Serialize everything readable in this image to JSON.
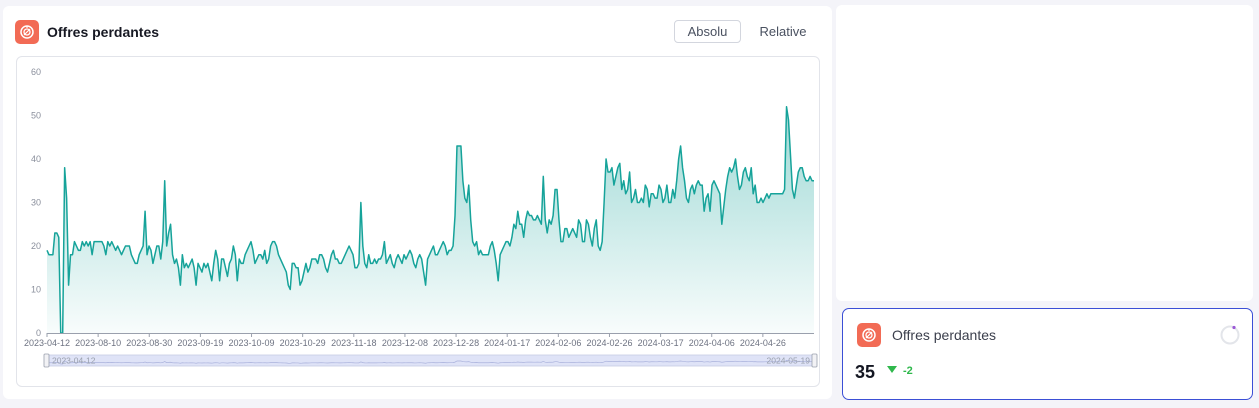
{
  "header": {
    "title": "Offres perdantes",
    "toggle_absolute": "Absolu",
    "toggle_relative": "Relative",
    "active_toggle": "Absolu"
  },
  "chart_data": {
    "type": "area",
    "title": "Offres perdantes",
    "xlabel": "",
    "ylabel": "",
    "ylim": [
      0,
      60
    ],
    "yticks": [
      0,
      10,
      20,
      30,
      40,
      50,
      60
    ],
    "start_date": "2023-04-12",
    "end_date": "2024-05-19",
    "x_tick_labels": [
      "2023-04-12",
      "2023-08-10",
      "2023-08-30",
      "2023-09-19",
      "2023-10-09",
      "2023-10-29",
      "2023-11-18",
      "2023-12-08",
      "2023-12-28",
      "2024-01-17",
      "2024-02-06",
      "2024-02-26",
      "2024-03-17",
      "2024-04-06",
      "2024-04-26"
    ],
    "grid": false,
    "line_color": "#16a39a",
    "fill_color": "#16a39a",
    "zoom_slider": {
      "start_label": "2023-04-12",
      "end_label": "2024-05-19"
    },
    "series": [
      {
        "name": "Offres perdantes",
        "values": [
          19,
          18,
          18,
          18,
          23,
          23,
          22,
          0,
          0,
          38,
          31,
          11,
          18,
          18,
          21,
          20,
          19,
          19,
          21,
          20,
          21,
          20,
          21,
          18,
          21,
          21,
          21,
          21,
          21,
          20,
          18,
          21,
          20,
          21,
          20,
          19,
          20,
          19,
          18,
          19,
          20,
          20,
          20,
          18,
          17,
          16,
          16,
          18,
          19,
          20,
          28,
          18,
          20,
          19,
          16,
          18,
          20,
          20,
          17,
          21,
          35,
          20,
          23,
          25,
          18,
          16,
          17,
          15,
          11,
          18,
          15,
          16,
          15,
          16,
          17,
          15,
          11,
          16,
          15,
          14,
          16,
          15,
          16,
          14,
          12,
          16,
          19,
          17,
          12,
          17,
          17,
          15,
          13,
          16,
          17,
          20,
          18,
          12,
          17,
          16,
          16,
          18,
          19,
          20,
          21,
          19,
          16,
          17,
          18,
          18,
          17,
          19,
          16,
          17,
          20,
          21,
          21,
          20,
          18,
          17,
          16,
          15,
          14,
          11,
          10,
          16,
          16,
          15,
          15,
          11,
          12,
          14,
          16,
          14,
          15,
          17,
          17,
          17,
          16,
          18,
          18,
          17,
          15,
          14,
          16,
          18,
          19,
          17,
          17,
          16,
          16,
          17,
          18,
          19,
          20,
          19,
          18,
          15,
          15,
          16,
          30,
          20,
          16,
          15,
          18,
          16,
          16,
          17,
          16,
          17,
          17,
          18,
          21,
          16,
          17,
          18,
          16,
          15,
          17,
          18,
          17,
          16,
          18,
          17,
          18,
          19,
          18,
          16,
          15,
          17,
          18,
          17,
          14,
          11,
          17,
          18,
          19,
          20,
          18,
          18,
          19,
          20,
          21,
          20,
          18,
          19,
          19,
          20,
          27,
          43,
          43,
          43,
          35,
          31,
          30,
          34,
          26,
          21,
          20,
          21,
          18,
          19,
          18,
          18,
          18,
          18,
          20,
          21,
          19,
          16,
          12,
          18,
          19,
          20,
          21,
          21,
          20,
          22,
          25,
          24,
          28,
          25,
          25,
          22,
          26,
          28,
          27,
          27,
          26,
          26,
          27,
          26,
          25,
          36,
          26,
          23,
          26,
          25,
          27,
          33,
          33,
          26,
          21,
          21,
          24,
          24,
          22,
          23,
          24,
          23,
          22,
          26,
          25,
          21,
          21,
          26,
          25,
          22,
          20,
          24,
          26,
          20,
          19,
          21,
          30,
          40,
          37,
          37,
          38,
          34,
          36,
          38,
          39,
          33,
          35,
          32,
          33,
          37,
          30,
          31,
          33,
          30,
          30,
          31,
          30,
          34,
          33,
          29,
          32,
          32,
          31,
          31,
          34,
          33,
          30,
          31,
          34,
          30,
          30,
          33,
          31,
          35,
          40,
          43,
          38,
          35,
          31,
          30,
          33,
          34,
          32,
          34,
          35,
          34,
          34,
          28,
          31,
          32,
          28,
          34,
          35,
          34,
          33,
          32,
          25,
          29,
          33,
          36,
          38,
          37,
          38,
          40,
          36,
          33,
          34,
          37,
          38,
          36,
          35,
          38,
          32,
          34,
          30,
          30,
          31,
          30,
          31,
          32,
          31,
          32,
          32,
          32,
          32,
          32,
          32,
          32,
          33,
          52,
          49,
          41,
          33,
          31,
          34,
          37,
          38,
          38,
          36,
          35,
          35,
          36,
          35,
          35
        ]
      }
    ]
  },
  "kpi": {
    "title": "Offres perdantes",
    "value": "35",
    "delta": "-2",
    "delta_direction": "down",
    "delta_color": "#2fb84c",
    "border_color": "#3b4fd6",
    "icon": "brand-logo-icon"
  },
  "colors": {
    "brand": "#f26b55",
    "accent": "#16a39a"
  }
}
